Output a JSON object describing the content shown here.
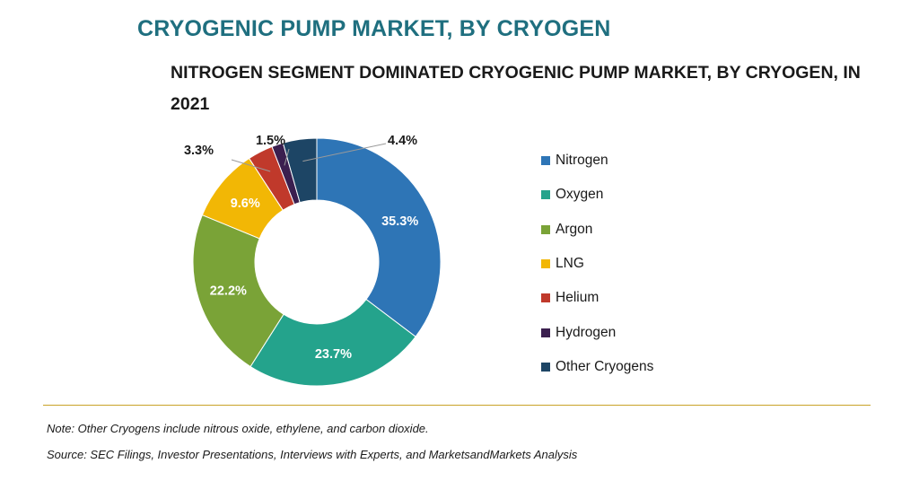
{
  "title": "CRYOGENIC PUMP MARKET, BY CRYOGEN",
  "subtitle": "NITROGEN SEGMENT DOMINATED CRYOGENIC PUMP MARKET, BY CRYOGEN, IN 2021",
  "note": "Note: Other Cryogens include nitrous oxide, ethylene, and carbon dioxide.",
  "source": "Source: SEC Filings, Investor Presentations, Interviews with Experts, and MarketsandMarkets Analysis",
  "colors": {
    "divider": "#c9a227",
    "title": "#1f6f7f"
  },
  "chart_data": {
    "type": "pie",
    "donut": true,
    "legend_position": "right",
    "slices": [
      {
        "name": "Nitrogen",
        "value": 35.3,
        "label": "35.3%",
        "color": "#2e75b6"
      },
      {
        "name": "Oxygen",
        "value": 23.7,
        "label": "23.7%",
        "color": "#24a38c"
      },
      {
        "name": "Argon",
        "value": 22.2,
        "label": "22.2%",
        "color": "#7aa337"
      },
      {
        "name": "LNG",
        "value": 9.6,
        "label": "9.6%",
        "color": "#f2b705"
      },
      {
        "name": "Helium",
        "value": 3.3,
        "label": "3.3%",
        "color": "#c0392b"
      },
      {
        "name": "Hydrogen",
        "value": 1.5,
        "label": "1.5%",
        "color": "#3b1f4f"
      },
      {
        "name": "Other Cryogens",
        "value": 4.4,
        "label": "4.4%",
        "color": "#1d4565"
      }
    ]
  }
}
